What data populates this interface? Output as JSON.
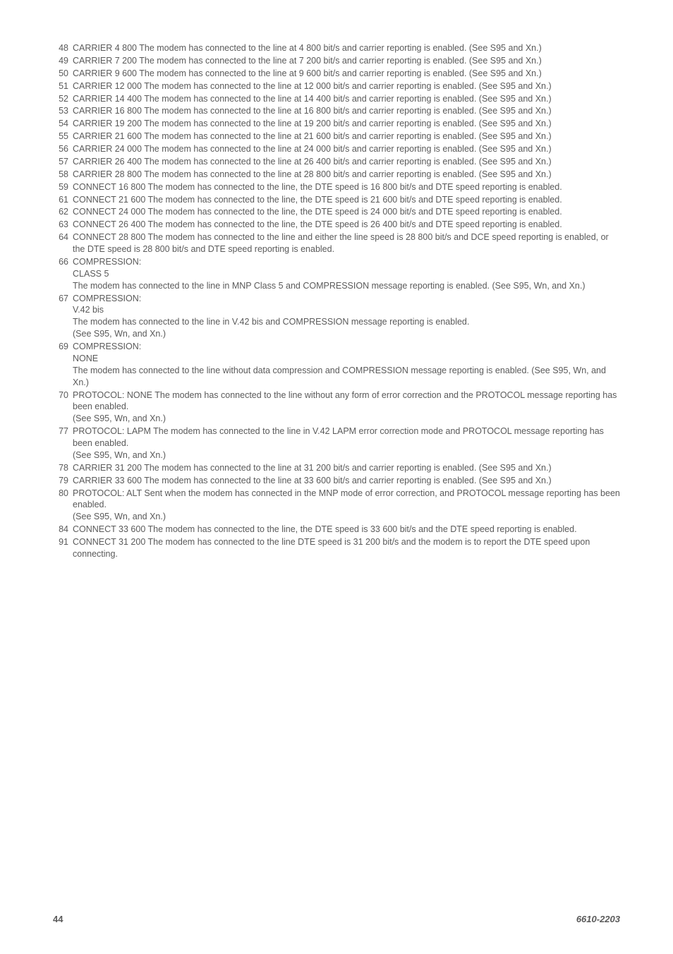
{
  "entries": [
    {
      "num": "48",
      "lines": [
        "CARRIER 4 800 The modem has connected to the line at 4 800 bit/s and carrier reporting is enabled. (See S95 and Xn.)"
      ]
    },
    {
      "num": "49",
      "lines": [
        "CARRIER 7 200 The modem has connected to the line at 7 200 bit/s and carrier reporting is enabled. (See S95 and Xn.)"
      ]
    },
    {
      "num": "50",
      "lines": [
        "CARRIER 9 600 The modem has connected to the line at 9 600 bit/s and carrier reporting is enabled. (See S95 and Xn.)"
      ]
    },
    {
      "num": "51",
      "lines": [
        "CARRIER 12 000 The modem has connected to the line at 12 000 bit/s and carrier reporting is enabled. (See S95 and Xn.)"
      ]
    },
    {
      "num": "52",
      "lines": [
        "CARRIER 14 400 The modem has connected to the line at 14 400 bit/s and carrier reporting is enabled. (See S95 and Xn.)"
      ]
    },
    {
      "num": "53",
      "lines": [
        "CARRIER 16 800 The modem has connected to the line at 16 800 bit/s and carrier reporting is enabled. (See S95 and Xn.)"
      ]
    },
    {
      "num": "54",
      "lines": [
        "CARRIER 19 200 The modem has connected to the line at 19 200 bit/s and carrier reporting is enabled. (See S95 and Xn.)"
      ]
    },
    {
      "num": "55",
      "lines": [
        "CARRIER 21 600 The modem has connected to the line at 21 600 bit/s and carrier reporting is enabled. (See S95 and Xn.)"
      ]
    },
    {
      "num": "56",
      "lines": [
        "CARRIER 24 000 The modem has connected to the line at 24 000 bit/s and carrier reporting is enabled. (See S95 and Xn.)"
      ]
    },
    {
      "num": "57",
      "lines": [
        "CARRIER 26 400 The modem has connected to the line at 26 400 bit/s and carrier reporting is enabled. (See S95 and Xn.)"
      ]
    },
    {
      "num": "58",
      "lines": [
        "CARRIER 28 800 The modem has connected to the line at 28 800 bit/s and carrier reporting is enabled. (See S95 and Xn.)"
      ]
    },
    {
      "num": "59",
      "lines": [
        "CONNECT 16 800 The modem has connected to the line, the DTE speed is 16 800 bit/s and DTE speed reporting is enabled."
      ]
    },
    {
      "num": "61",
      "lines": [
        "CONNECT 21 600 The modem has connected to the line, the DTE speed is 21 600 bit/s and DTE speed reporting is enabled."
      ]
    },
    {
      "num": "62",
      "lines": [
        "CONNECT 24 000 The modem has connected to the line, the DTE speed is 24 000 bit/s and DTE speed reporting is enabled."
      ]
    },
    {
      "num": "63",
      "lines": [
        "CONNECT 26 400 The modem has connected to the line, the DTE speed is 26 400 bit/s and DTE speed reporting is enabled."
      ]
    },
    {
      "num": "64",
      "lines": [
        "CONNECT 28 800 The modem has connected to the line and either the line speed is 28 800 bit/s and DCE speed reporting is enabled, or the DTE speed is 28 800 bit/s and DTE speed reporting is enabled."
      ]
    },
    {
      "num": "66",
      "lines": [
        "COMPRESSION:",
        "CLASS 5",
        "The modem has connected to the line in MNP Class 5 and COMPRESSION message reporting is enabled. (See S95, Wn, and Xn.)"
      ]
    },
    {
      "num": "67",
      "lines": [
        "COMPRESSION:",
        "V.42 bis",
        "The modem has connected to the line in V.42 bis and COMPRESSION message reporting is enabled.",
        "(See S95, Wn, and Xn.)"
      ]
    },
    {
      "num": "69",
      "lines": [
        "COMPRESSION:",
        "NONE",
        "The modem has connected to the line without data compression and COMPRESSION message reporting is enabled. (See S95, Wn, and Xn.)"
      ]
    },
    {
      "num": "70",
      "lines": [
        "PROTOCOL: NONE The modem has connected to the line without any form of error correction and the PROTOCOL message reporting has been enabled.",
        "(See S95, Wn, and Xn.)"
      ]
    },
    {
      "num": "77",
      "lines": [
        "PROTOCOL: LAPM The modem has connected to the line in V.42 LAPM error correction mode and PROTOCOL message reporting has been enabled.",
        "(See S95, Wn, and Xn.)"
      ]
    },
    {
      "num": "78",
      "lines": [
        "CARRIER 31 200 The modem has connected to the line at 31 200 bit/s and carrier reporting is enabled. (See S95 and Xn.)"
      ]
    },
    {
      "num": "79",
      "lines": [
        "CARRIER 33 600 The modem has connected to the line at 33 600 bit/s and carrier reporting is enabled. (See S95 and Xn.)"
      ]
    },
    {
      "num": "80",
      "lines": [
        "PROTOCOL: ALT Sent when the modem has connected in the MNP mode of error correction, and PROTOCOL message reporting has been enabled.",
        "(See S95, Wn, and Xn.)"
      ]
    },
    {
      "num": "84",
      "lines": [
        "CONNECT 33 600 The modem has connected to the line, the DTE speed is 33 600 bit/s and the DTE speed reporting is enabled."
      ]
    },
    {
      "num": "91",
      "lines": [
        "CONNECT 31 200 The modem has connected to the line DTE speed is 31 200 bit/s and the modem is to report the DTE speed upon connecting."
      ]
    }
  ],
  "footer": {
    "page_number": "44",
    "doc_number": "6610-2203"
  }
}
